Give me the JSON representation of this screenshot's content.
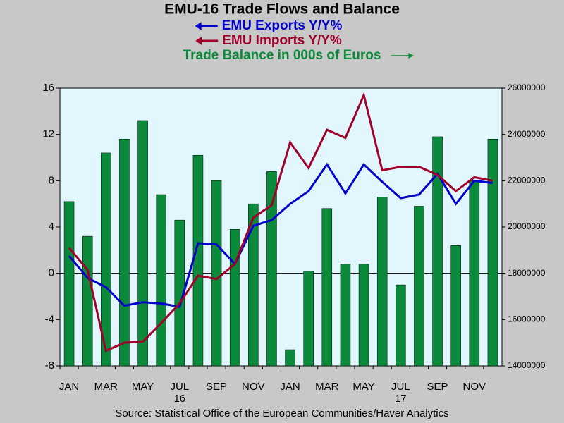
{
  "chart_data": {
    "type": "bar-line",
    "title": "EMU-16 Trade Flows and Balance",
    "source": "Source:  Statistical Office of the European Communities/Haver Analytics",
    "categories": [
      "JAN",
      null,
      "MAR",
      null,
      "MAY",
      null,
      "JUL",
      null,
      "SEP",
      null,
      "NOV",
      null,
      "JAN",
      null,
      "MAR",
      null,
      "MAY",
      null,
      "JUL",
      null,
      "SEP",
      null,
      "NOV",
      null
    ],
    "years": [
      "16",
      "17"
    ],
    "ylim": [
      -8,
      16
    ],
    "yticks": [
      -8,
      -4,
      0,
      4,
      8,
      12,
      16
    ],
    "y2lim": [
      14000000,
      26000000
    ],
    "y2ticks": [
      14000000,
      16000000,
      18000000,
      20000000,
      22000000,
      24000000,
      26000000
    ],
    "series": [
      {
        "name": "EMU Exports Y/Y%",
        "type": "line",
        "color": "#0000cc",
        "values": [
          1.5,
          -0.4,
          -1.2,
          -2.8,
          -2.5,
          -2.6,
          -2.9,
          2.6,
          2.5,
          0.8,
          4.1,
          4.6,
          6.0,
          7.1,
          9.4,
          6.9,
          9.4,
          7.9,
          6.5,
          6.8,
          8.6,
          6.0,
          8.0,
          7.8
        ]
      },
      {
        "name": "EMU Imports Y/Y%",
        "type": "line",
        "color": "#a0002a",
        "values": [
          2.2,
          0.3,
          -6.7,
          -6.0,
          -5.9,
          -4.3,
          -2.6,
          -0.2,
          -0.5,
          0.8,
          4.8,
          5.9,
          11.3,
          9.1,
          12.4,
          11.7,
          15.4,
          8.9,
          9.2,
          9.2,
          8.5,
          7.1,
          8.3,
          8.0
        ]
      },
      {
        "name": "Trade Balance in 000s of Euros",
        "type": "bar",
        "axis": "y2",
        "color": "#0a8a3a",
        "values": [
          21100000,
          19600000,
          23200000,
          23800000,
          24600000,
          21400000,
          20300000,
          23100000,
          22000000,
          19900000,
          21000000,
          22400000,
          14700000,
          18100000,
          20800000,
          18400000,
          18400000,
          21300000,
          17500000,
          20900000,
          23900000,
          19200000,
          22000000,
          23800000
        ]
      }
    ]
  }
}
